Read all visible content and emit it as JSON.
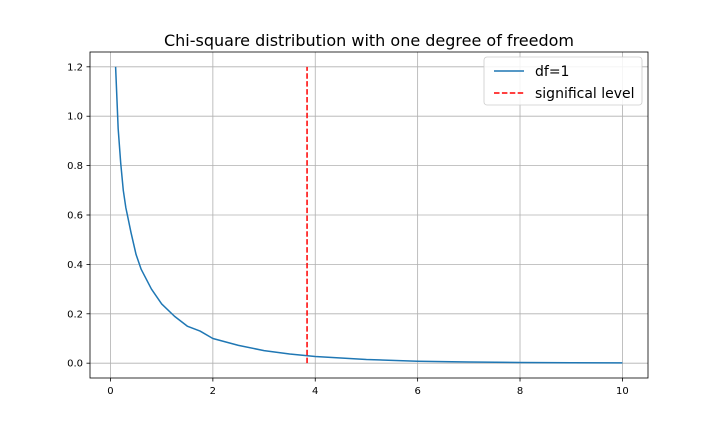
{
  "chart_data": {
    "type": "line",
    "title": "Chi-square distribution with one degree of freedom",
    "xlabel": "",
    "ylabel": "",
    "xlim": [
      -0.4,
      10.5
    ],
    "ylim": [
      -0.06,
      1.26
    ],
    "x_ticks": [
      "0",
      "2",
      "4",
      "6",
      "8",
      "10"
    ],
    "y_ticks": [
      "0.0",
      "0.2",
      "0.4",
      "0.6",
      "0.8",
      "1.0",
      "1.2"
    ],
    "grid": true,
    "legend_position": "top-right",
    "series": [
      {
        "name": "df=1",
        "style": "solid",
        "color": "#1f77b4",
        "x": [
          0.1,
          0.15,
          0.2,
          0.25,
          0.3,
          0.4,
          0.5,
          0.6,
          0.7,
          0.8,
          1.0,
          1.25,
          1.5,
          1.75,
          2.0,
          2.5,
          3.0,
          3.5,
          4.0,
          5.0,
          6.0,
          7.0,
          8.0,
          9.0,
          10.0
        ],
        "y": [
          1.2,
          0.95,
          0.81,
          0.7,
          0.63,
          0.53,
          0.44,
          0.38,
          0.34,
          0.3,
          0.24,
          0.19,
          0.15,
          0.13,
          0.1,
          0.072,
          0.051,
          0.037,
          0.027,
          0.015,
          0.008,
          0.005,
          0.003,
          0.002,
          0.001
        ]
      },
      {
        "name": "significal level",
        "style": "dashed",
        "color": "#ff0000",
        "x": [
          3.84,
          3.84
        ],
        "y": [
          0.0,
          1.2
        ]
      }
    ]
  }
}
